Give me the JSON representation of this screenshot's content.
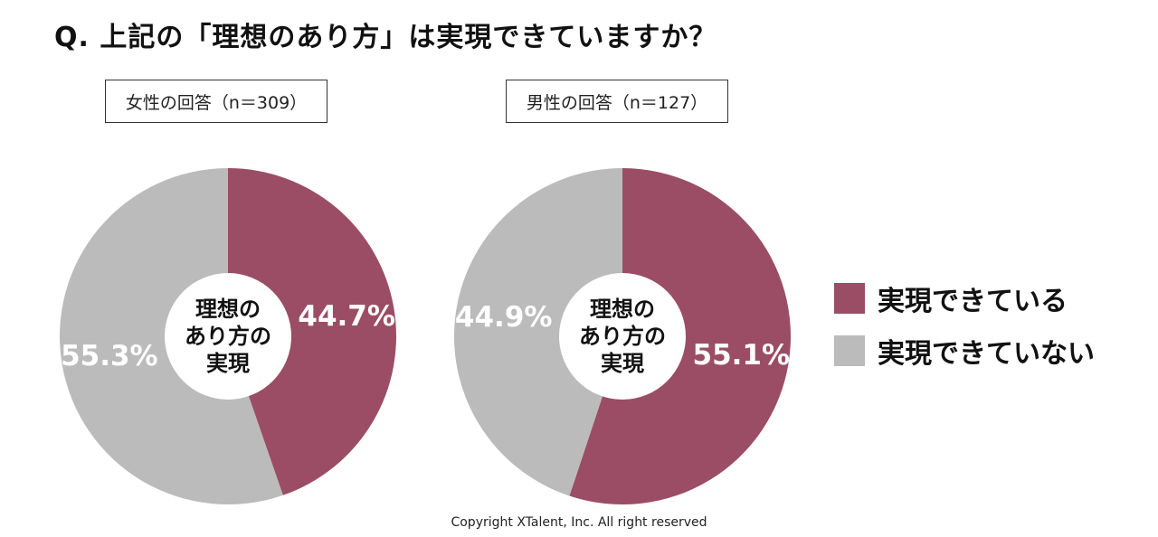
{
  "title": "Q. 上記の「理想のあり方」は実現できていますか？",
  "copyright": "Copyright XTalent, Inc. All right reserved",
  "colors": {
    "realized": "#9b4d65",
    "not_realized": "#bbbbbb"
  },
  "legend": [
    {
      "label": "実現できている",
      "color_key": "realized"
    },
    {
      "label": "実現できていない",
      "color_key": "not_realized"
    }
  ],
  "chart_data": [
    {
      "type": "pie",
      "title": "女性の回答（n＝309）",
      "center_label": [
        "理想の",
        "あり方の",
        "実現"
      ],
      "slices": [
        {
          "name": "実現できている",
          "value": 44.7,
          "label": "44.7%",
          "color_key": "realized"
        },
        {
          "name": "実現できていない",
          "value": 55.3,
          "label": "55.3%",
          "color_key": "not_realized"
        }
      ]
    },
    {
      "type": "pie",
      "title": "男性の回答（n＝127）",
      "center_label": [
        "理想の",
        "あり方の",
        "実現"
      ],
      "slices": [
        {
          "name": "実現できている",
          "value": 55.1,
          "label": "55.1%",
          "color_key": "realized"
        },
        {
          "name": "実現できていない",
          "value": 44.9,
          "label": "44.9%",
          "color_key": "not_realized"
        }
      ]
    }
  ]
}
